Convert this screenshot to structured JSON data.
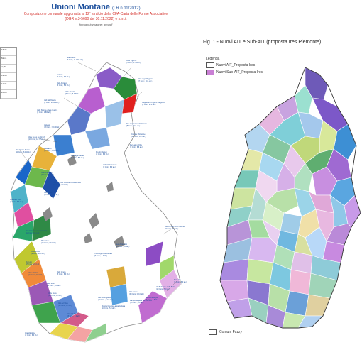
{
  "left_panel": {
    "title": "Unioni Montane",
    "title_ref": "(LR n.11/2012)",
    "subtitle_line1": "Composizione comunale aggiornata al 12° stralcio della CFA-Carta delle Forme Associative",
    "subtitle_line2": "(DGR n.3-5690 del 30.11.2022) e s.m.i.",
    "format_note": "formato immagine: geopdf",
    "legend_values": [
      "16,76",
      "Mont.",
      "4,25",
      "13,48",
      "11,47",
      "25,00"
    ],
    "unions": [
      {
        "name": "Alta Ossola",
        "detail": "(6 Com.; 11.1906 ab.)"
      },
      {
        "name": "Valle Vigezzo",
        "detail": "(7 Com.; 5.783ab.)"
      },
      {
        "name": "Antrona",
        "detail": "(4 Com.; 3.0 ab.)"
      },
      {
        "name": "Valle Anzasca",
        "detail": "(6 Com.; 5.0 ab.)"
      },
      {
        "name": "Valle Ossola",
        "detail": "(6 Com.; 6.775ab.)"
      },
      {
        "name": "Valli dell'Ossola",
        "detail": "(6 Com.; 23.906ab.)"
      },
      {
        "name": "Alto Lago Maggiore",
        "detail": "(7 Com.; 10.1 ab.)"
      },
      {
        "name": "Valgrande e Lago di Mergozzo",
        "detail": "(8 Com.; 21.2 ab.)"
      },
      {
        "name": "Valle Strona e delle Quarne",
        "detail": "(6 Com.; 1.806ab.)"
      },
      {
        "name": "Valsesia",
        "detail": "(28 Com.; 36.000ab.)"
      },
      {
        "name": "Valle Cervo La Bürsch",
        "detail": "(10 Com.; 12.725ab.)"
      },
      {
        "name": "Due Laghi Cusio Mottarone",
        "detail": "(8 Com.; 17.1 ab.)"
      },
      {
        "name": "Cusio e Mottarone",
        "detail": "(11 Com.; 14.5 ab.)"
      },
      {
        "name": "Del Lago d'Orta",
        "detail": "(5 Com.; 6.6 ab.)"
      },
      {
        "name": "Valli Orco e Soana",
        "detail": "(11 Com.; 8.492ab.)"
      },
      {
        "name": "Valle Elvo",
        "detail": "(10 Com.; 8.840ab.)"
      },
      {
        "name": "Montagne Biellesi",
        "detail": "(8 Com.; 5.0 ab.)"
      },
      {
        "name": "Prealpi Biellesi",
        "detail": "(8 Com.; 6.0 ab.)"
      },
      {
        "name": "Valli del Canavese",
        "detail": "(6 Com.; 6.0 ab.)"
      },
      {
        "name": "Gran Paradiso",
        "detail": "(7 Com.; 7.3 ab.)"
      },
      {
        "name": "Valli di Lanzo Ceronda e Casternone",
        "detail": "(19 Com.; 29.0 ab.)"
      },
      {
        "name": "Valle Susa",
        "detail": "(23 Com.; 60.0 ab.)"
      },
      {
        "name": "Alta Valle Susa",
        "detail": "(7 Com.; 6.0 ab.)"
      },
      {
        "name": "Valli Chisone e Germanasca",
        "detail": "(12 Com.; 10.1 ab.)"
      },
      {
        "name": "Pinerolese",
        "detail": "(13 Com.; 28.0 ab.)"
      },
      {
        "name": "Valle Pellice",
        "detail": "(9 Com.; 20.0 ab.)"
      },
      {
        "name": "Monviso",
        "detail": "(15 Com.; 23.0 ab.)"
      },
      {
        "name": "Valle Varaita",
        "detail": "(12 Com.; 15.0 ab.)"
      },
      {
        "name": "Valle Maira",
        "detail": "(12 Com.; 8.0 ab.)"
      },
      {
        "name": "Valle Grana",
        "detail": "(5 Com.; 6.0 ab.)"
      },
      {
        "name": "Valle Stura",
        "detail": "(12 Com.; 8.5 ab.)"
      },
      {
        "name": "Alpi del Mare",
        "detail": "(10 Com.; 9.5 ab.)"
      },
      {
        "name": "Valli Monregalesi",
        "detail": "(10 Com.; 14.0 ab.)"
      },
      {
        "name": "Mongia Cevetta Langa Cebana",
        "detail": "(14 Com.; 5.0 ab.)"
      },
      {
        "name": "Alta Langa",
        "detail": "(39 Com.; 16.0 ab.)"
      },
      {
        "name": "Langa Astigiana Val Bormida",
        "detail": "(16 Com.; 9.0 ab.)"
      },
      {
        "name": "Suol d'Aleramo",
        "detail": "(13 Com.; 8.0 ab.)"
      },
      {
        "name": "Tra Langa e Monferrato",
        "detail": "(6 Com.; 6.0 ab.)"
      },
      {
        "name": "Valli Curone Grue Ossona",
        "detail": "(19 Com.; 9.0 ab.)"
      },
      {
        "name": "Terre Alte",
        "detail": "(7 Com.; 6.0 ab.)"
      },
      {
        "name": "Val Borbera e Valle Spinti",
        "detail": "(10 Com.; 5.0 ab.)"
      },
      {
        "name": "Val Vermenagna",
        "detail": "(3 Com.; 3.5 ab.)"
      },
      {
        "name": "Alta Val Tanaro",
        "detail": "(8 Com.; 3.0 ab.)"
      },
      {
        "name": "Alta Valtidone",
        "detail": "(8 Com.; 6.0 ab.)"
      }
    ]
  },
  "right_panel": {
    "figure_title": "Fig. 1 - Nuovi AIT e Sub-AIT (proposta Ires Piemonte)",
    "legend_title": "Legenda",
    "legend_items": [
      {
        "label": "Nuovi AIT_Proposta Ires",
        "color": "#ffffff"
      },
      {
        "label": "Nuovi Sub-AIT_Proposta Ires",
        "color": "#c97fd4"
      }
    ],
    "footer_legend": {
      "label": "Comuni Fuzzy",
      "color": "#ffffff"
    }
  },
  "colors": {
    "title_blue": "#1c4f9c",
    "title_red": "#d4322d"
  }
}
